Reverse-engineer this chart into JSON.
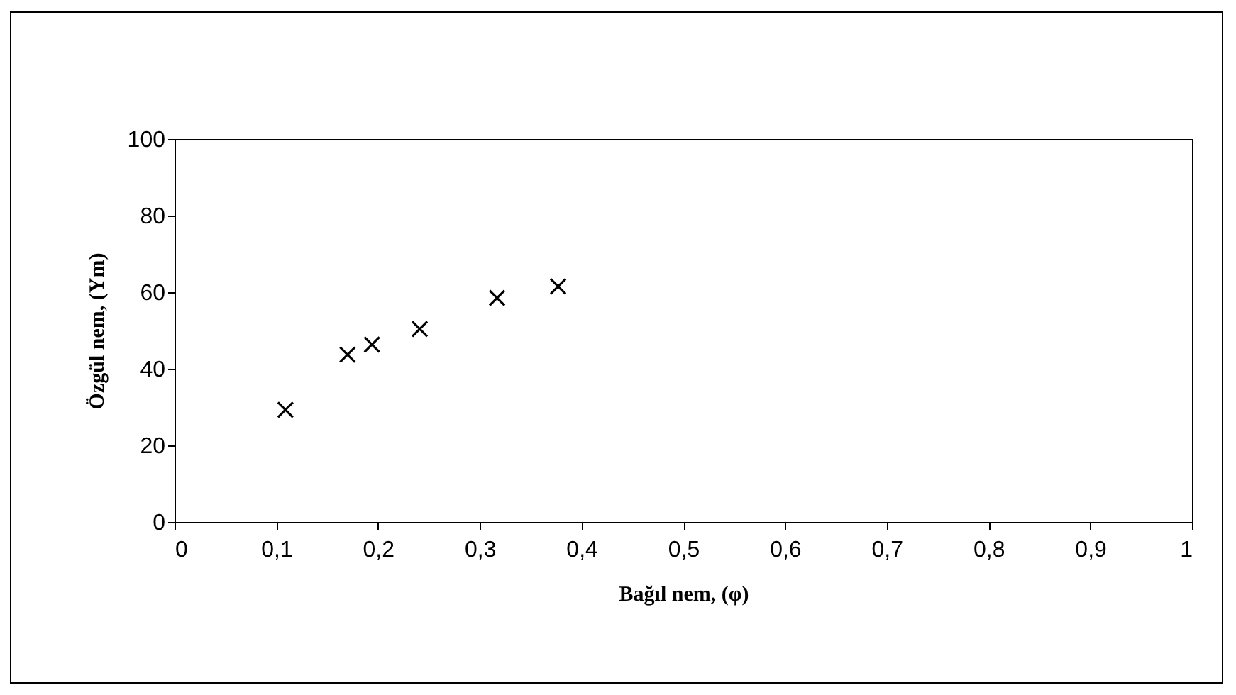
{
  "chart_data": {
    "type": "scatter",
    "xlabel": "Bağıl nem, (φ)",
    "ylabel": "Özgül nem, (Ym)",
    "x": [
      0.109,
      0.17,
      0.194,
      0.241,
      0.317,
      0.377
    ],
    "series": [
      {
        "color": "#000000",
        "values": [
          29.3,
          43.7,
          46.3,
          50.4,
          58.5,
          61.5
        ]
      }
    ],
    "xlim": [
      0,
      1
    ],
    "xticks": [
      0,
      {
        "value": 0.1,
        "label": "0,1"
      },
      {
        "value": 0.2,
        "label": "0,2"
      },
      {
        "value": 0.3,
        "label": "0,3"
      },
      {
        "value": 0.4,
        "label": "0,4"
      },
      {
        "value": 0.5,
        "label": "0,5"
      },
      {
        "value": 0.6,
        "label": "0,6"
      },
      {
        "value": 0.7,
        "label": "0,7"
      },
      {
        "value": 0.8,
        "label": "0,8"
      },
      {
        "value": 0.9,
        "label": "0,9"
      },
      1
    ],
    "ylim": [
      0,
      100
    ],
    "yticks": [
      0,
      20,
      40,
      60,
      80,
      100
    ],
    "grid": false,
    "marker": "cross"
  }
}
